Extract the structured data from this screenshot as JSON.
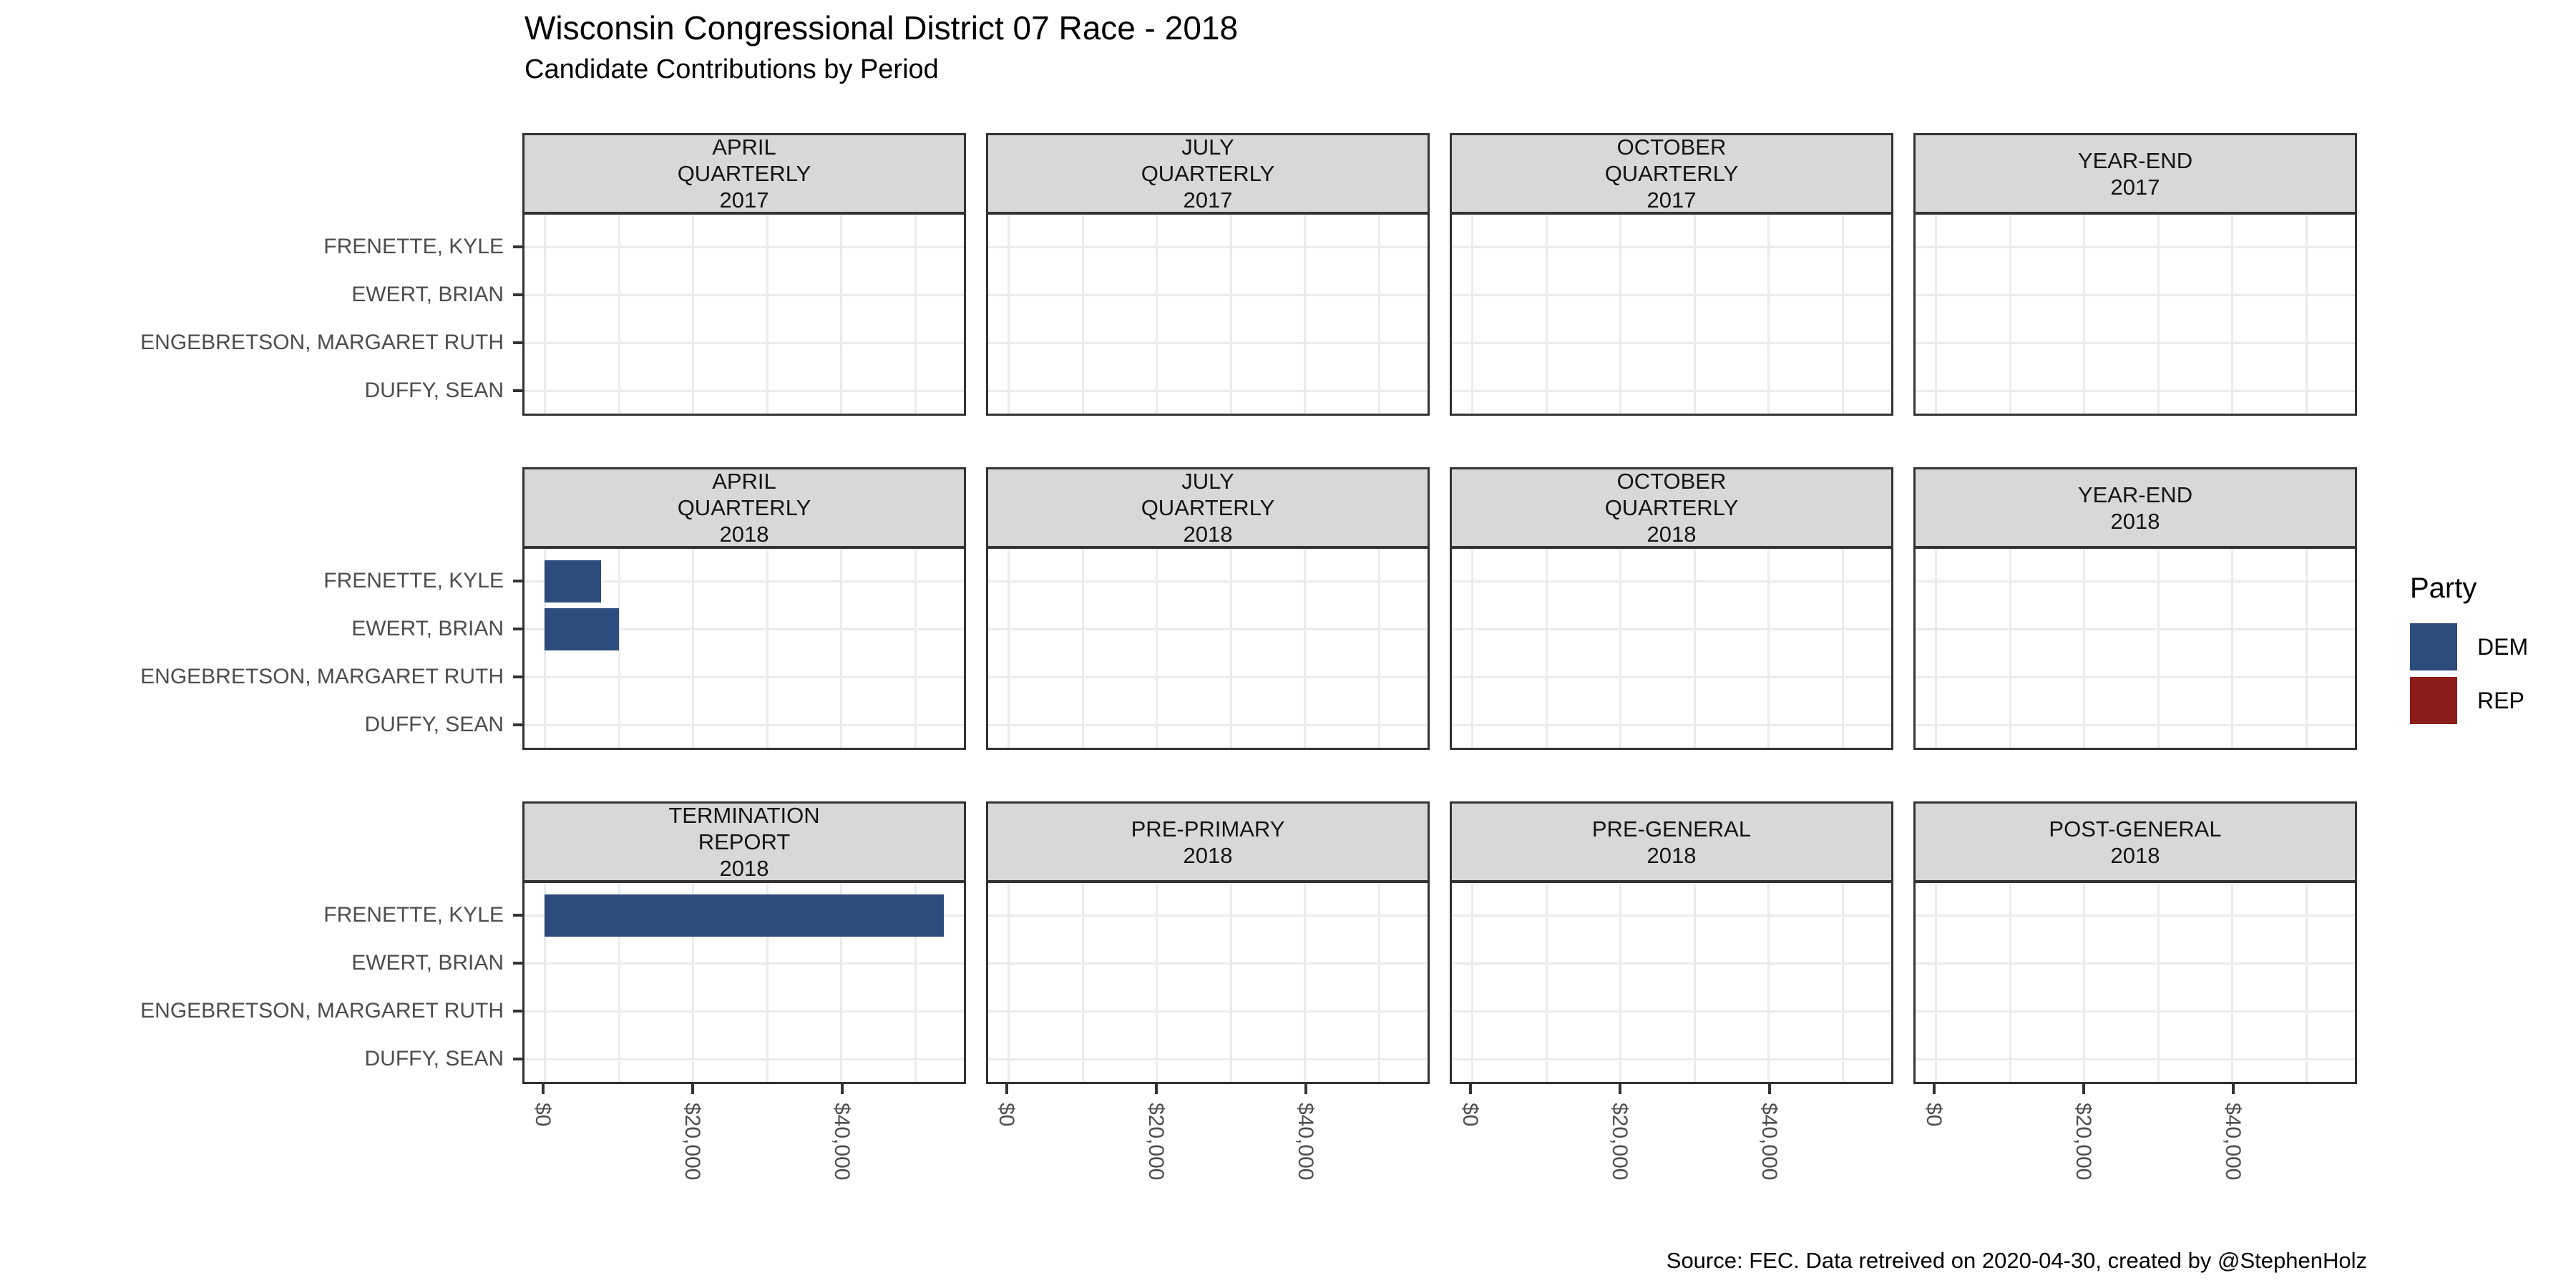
{
  "chart_data": {
    "type": "bar",
    "orientation": "horizontal",
    "title": "Wisconsin Congressional District 07 Race - 2018",
    "subtitle": "Candidate Contributions by Period",
    "caption": "Source: FEC. Data retreived on 2020-04-30, created by @StephenHolz",
    "categories": [
      "FRENETTE, KYLE",
      "EWERT, BRIAN",
      "ENGEBRETSON, MARGARET RUTH",
      "DUFFY, SEAN"
    ],
    "x_range": [
      -2750,
      56600
    ],
    "x_ticks": [
      {
        "value": 0,
        "label": "$0"
      },
      {
        "value": 20000,
        "label": "$20,000"
      },
      {
        "value": 40000,
        "label": "$40,000"
      }
    ],
    "gridline_values": [
      0,
      10000,
      20000,
      30000,
      40000,
      50000
    ],
    "grid": true,
    "legend": {
      "title": "Party",
      "position": "right",
      "entries": [
        {
          "label": "DEM",
          "color": "#2b4c7d"
        },
        {
          "label": "REP",
          "color": "#8c1c1c"
        }
      ]
    },
    "facet_rows": [
      {
        "show_axis": false,
        "facets": [
          {
            "label_lines": [
              "APRIL",
              "QUARTERLY",
              "2017"
            ],
            "bars": []
          },
          {
            "label_lines": [
              "JULY",
              "QUARTERLY",
              "2017"
            ],
            "bars": []
          },
          {
            "label_lines": [
              "OCTOBER",
              "QUARTERLY",
              "2017"
            ],
            "bars": []
          },
          {
            "label_lines": [
              "YEAR-END",
              "2017"
            ],
            "bars": []
          }
        ]
      },
      {
        "show_axis": false,
        "facets": [
          {
            "label_lines": [
              "APRIL",
              "QUARTERLY",
              "2018"
            ],
            "bars": [
              {
                "candidate": "FRENETTE, KYLE",
                "party": "DEM",
                "value": 7600
              },
              {
                "candidate": "EWERT, BRIAN",
                "party": "DEM",
                "value": 10000
              }
            ]
          },
          {
            "label_lines": [
              "JULY",
              "QUARTERLY",
              "2018"
            ],
            "bars": []
          },
          {
            "label_lines": [
              "OCTOBER",
              "QUARTERLY",
              "2018"
            ],
            "bars": []
          },
          {
            "label_lines": [
              "YEAR-END",
              "2018"
            ],
            "bars": []
          }
        ]
      },
      {
        "show_axis": true,
        "facets": [
          {
            "label_lines": [
              "TERMINATION",
              "REPORT",
              "2018"
            ],
            "bars": [
              {
                "candidate": "FRENETTE, KYLE",
                "party": "DEM",
                "value": 53900
              }
            ]
          },
          {
            "label_lines": [
              "PRE-PRIMARY",
              "2018"
            ],
            "bars": []
          },
          {
            "label_lines": [
              "PRE-GENERAL",
              "2018"
            ],
            "bars": []
          },
          {
            "label_lines": [
              "POST-GENERAL",
              "2018"
            ],
            "bars": []
          }
        ]
      }
    ],
    "colors": {
      "dem": "#2b4c7d",
      "rep": "#8c1c1c",
      "strip_background": "#d8d8d8",
      "panel_border": "#333333",
      "gridline": "#ebebeb",
      "axis_text": "#4d4d4d"
    }
  }
}
